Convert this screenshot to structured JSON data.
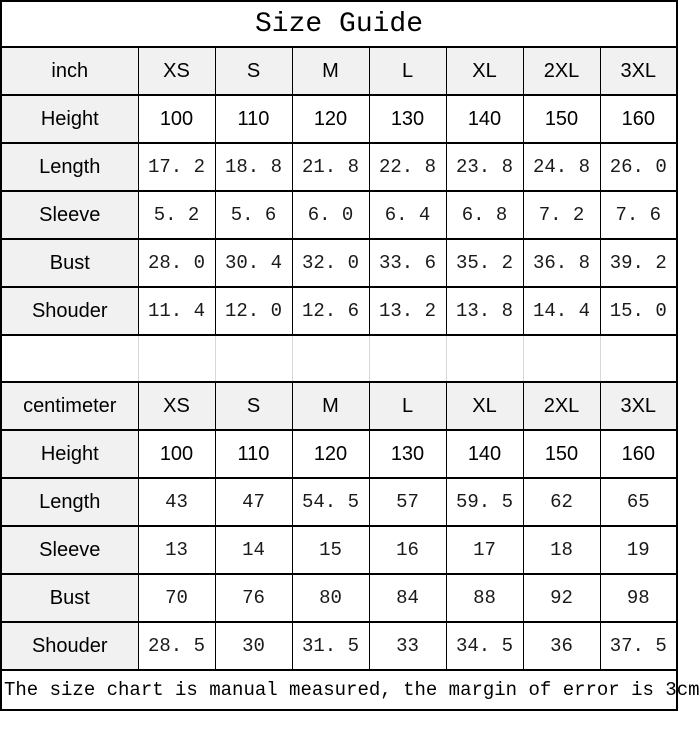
{
  "title": "Size Guide",
  "footer_note": "The size chart is manual measured, the margin of error is 3cm",
  "colors": {
    "header_bg": "#f1f1f1",
    "grid_border": "#000000",
    "spacer_line": "#d8d8d8",
    "background": "#ffffff"
  },
  "chart_data": [
    {
      "type": "table",
      "title": "Size Guide",
      "unit": "inch",
      "columns": [
        "inch",
        "XS",
        "S",
        "M",
        "L",
        "XL",
        "2XL",
        "3XL"
      ],
      "rows": [
        {
          "label": "Height",
          "values": [
            "100",
            "110",
            "120",
            "130",
            "140",
            "150",
            "160"
          ]
        },
        {
          "label": "Length",
          "values": [
            "17. 2",
            "18. 8",
            "21. 8",
            "22. 8",
            "23. 8",
            "24. 8",
            "26. 0"
          ]
        },
        {
          "label": "Sleeve",
          "values": [
            "5. 2",
            "5. 6",
            "6. 0",
            "6. 4",
            "6. 8",
            "7. 2",
            "7. 6"
          ]
        },
        {
          "label": "Bust",
          "values": [
            "28. 0",
            "30. 4",
            "32. 0",
            "33. 6",
            "35. 2",
            "36. 8",
            "39. 2"
          ]
        },
        {
          "label": "Shouder",
          "values": [
            "11. 4",
            "12. 0",
            "12. 6",
            "13. 2",
            "13. 8",
            "14. 4",
            "15. 0"
          ]
        }
      ]
    },
    {
      "type": "table",
      "unit": "centimeter",
      "columns": [
        "centimeter",
        "XS",
        "S",
        "M",
        "L",
        "XL",
        "2XL",
        "3XL"
      ],
      "rows": [
        {
          "label": "Height",
          "values": [
            "100",
            "110",
            "120",
            "130",
            "140",
            "150",
            "160"
          ]
        },
        {
          "label": "Length",
          "values": [
            "43",
            "47",
            "54. 5",
            "57",
            "59. 5",
            "62",
            "65"
          ]
        },
        {
          "label": "Sleeve",
          "values": [
            "13",
            "14",
            "15",
            "16",
            "17",
            "18",
            "19"
          ]
        },
        {
          "label": "Bust",
          "values": [
            "70",
            "76",
            "80",
            "84",
            "88",
            "92",
            "98"
          ]
        },
        {
          "label": "Shouder",
          "values": [
            "28. 5",
            "30",
            "31. 5",
            "33",
            "34. 5",
            "36",
            "37. 5"
          ]
        }
      ]
    }
  ]
}
